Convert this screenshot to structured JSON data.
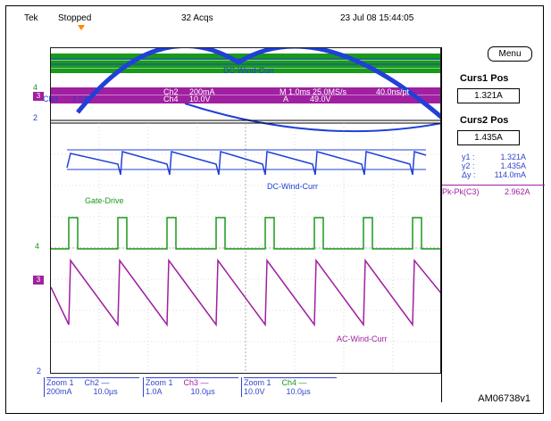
{
  "header": {
    "brand": "Tek",
    "run_state": "Stopped",
    "acqs": "32 Acqs",
    "datetime": "23 Jul 08 15:44:05"
  },
  "menu_label": "Menu",
  "cursors": {
    "curs1_title": "Curs1 Pos",
    "curs1_value": "1.321A",
    "curs2_title": "Curs2 Pos",
    "curs2_value": "1.435A",
    "readouts": [
      {
        "key": "y1 :",
        "value": "1.321A"
      },
      {
        "key": "y2 :",
        "value": "1.435A"
      },
      {
        "key": "Δy :",
        "value": "114.0mA"
      }
    ]
  },
  "measurement": {
    "label": "Pk-Pk(C3)",
    "value": "2.962A"
  },
  "overview": {
    "ch3": "Ch3",
    "ch3_scale": "1.0A",
    "ch2": "Ch2",
    "ch2_scale": "200mA",
    "ch4": "Ch4",
    "ch4_scale": "10.0V",
    "timebase": "M 1.0ms 25.0MS/s",
    "resolution": "40.0ns/pt",
    "trigger": "A",
    "trigger_level": "49.0V",
    "label_dc": "DC-Wind-Curr",
    "label_ac": "AC-Wind-Curr"
  },
  "zoom": {
    "label_dc": "DC-Wind-Curr",
    "label_gate": "Gate-Drive",
    "label_ac": "AC-Wind-Curr"
  },
  "markers": {
    "ch3": "3",
    "ch4": "4",
    "ch2": "2"
  },
  "bottom": [
    {
      "zoom": "Zoom 1",
      "ch": "Ch2 —",
      "scale": "200mA",
      "time": "10.0µs"
    },
    {
      "zoom": "Zoom 1",
      "ch": "Ch3 —",
      "scale": "1.0A",
      "time": "10.0µs"
    },
    {
      "zoom": "Zoom 1",
      "ch": "Ch4 —",
      "scale": "10.0V",
      "time": "10.0µs"
    }
  ],
  "caption": "AM06738v1",
  "colors": {
    "ch2": "#2040d8",
    "ch3": "#a020a0",
    "ch4": "#1a9a1a",
    "trigger_marker": "#ff8800"
  }
}
